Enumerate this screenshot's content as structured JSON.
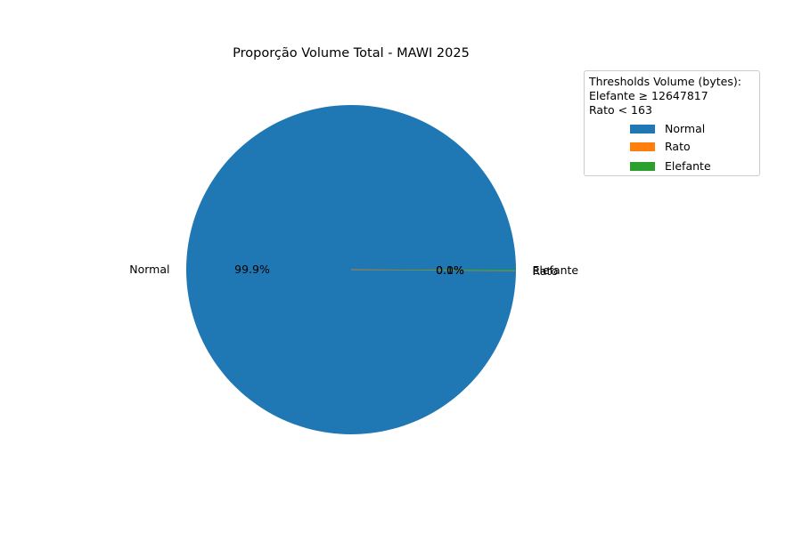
{
  "chart_data": {
    "type": "pie",
    "title": "Proporção Volume Total - MAWI 2025",
    "slices": [
      {
        "label": "Normal",
        "value": 99.9,
        "pct_label": "99.9%",
        "color": "#1f77b4"
      },
      {
        "label": "Rato",
        "value": 0.0,
        "pct_label": "0.0%",
        "color": "#ff7f0e"
      },
      {
        "label": "Elefante",
        "value": 0.1,
        "pct_label": "0.1%",
        "color": "#2ca02c"
      }
    ],
    "legend": {
      "placement": "top-right",
      "title_lines": [
        "Thresholds Volume (bytes):",
        "Elefante ≥ 12647817",
        "Rato < 163"
      ],
      "entries": [
        {
          "label": "Normal",
          "color": "#1f77b4"
        },
        {
          "label": "Rato",
          "color": "#ff7f0e"
        },
        {
          "label": "Elefante",
          "color": "#2ca02c"
        }
      ]
    }
  }
}
